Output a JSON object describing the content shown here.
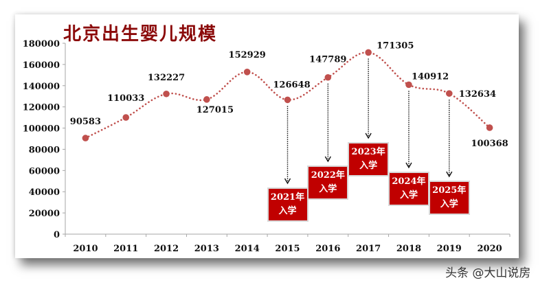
{
  "chart_data": {
    "type": "line",
    "title": "北京出生婴儿规模",
    "xlabel": "",
    "ylabel": "",
    "categories": [
      "2010",
      "2011",
      "2012",
      "2013",
      "2014",
      "2015",
      "2016",
      "2017",
      "2018",
      "2019",
      "2020"
    ],
    "values": [
      90583,
      110033,
      132227,
      127015,
      152929,
      126648,
      147789,
      171305,
      140912,
      132634,
      100368
    ],
    "series": [
      {
        "name": "北京出生婴儿规模",
        "values": [
          90583,
          110033,
          132227,
          127015,
          152929,
          126648,
          147789,
          171305,
          140912,
          132634,
          100368
        ],
        "color": "#c0504d",
        "line_style": "dotted"
      }
    ],
    "ylim": [
      0,
      180000
    ],
    "yticks": [
      "0",
      "20000",
      "40000",
      "60000",
      "80000",
      "100000",
      "120000",
      "140000",
      "160000",
      "180000"
    ],
    "grid": false,
    "legend": "none",
    "annotations": [
      {
        "from": "2015",
        "text": [
          "2021年",
          "入学"
        ]
      },
      {
        "from": "2016",
        "text": [
          "2022年",
          "入学"
        ]
      },
      {
        "from": "2017",
        "text": [
          "2023年",
          "入学"
        ]
      },
      {
        "from": "2018",
        "text": [
          "2024年",
          "入学"
        ]
      },
      {
        "from": "2019",
        "text": [
          "2025年",
          "入学"
        ]
      }
    ]
  },
  "colors": {
    "title": "#8b0a0a",
    "line": "#c0504d",
    "annotation_box": "#c00000"
  },
  "watermark": "头条 @大山说房"
}
